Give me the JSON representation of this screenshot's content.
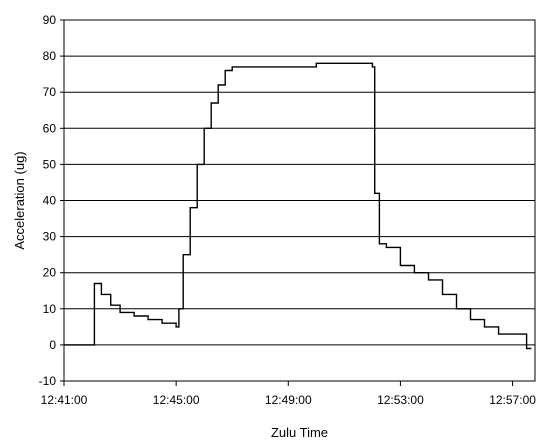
{
  "chart_data": {
    "type": "line",
    "title": "",
    "xlabel": "Zulu Time",
    "ylabel": "Acceleration (ug)",
    "xlim": [
      "12:41:00",
      "12:57:48"
    ],
    "ylim": [
      -10,
      90
    ],
    "yticks": [
      -10,
      0,
      10,
      20,
      30,
      40,
      50,
      60,
      70,
      80,
      90
    ],
    "xticks": [
      "12:41:00",
      "12:45:00",
      "12:49:00",
      "12:53:00",
      "12:57:00"
    ],
    "grid": "horizontal",
    "legend": "none",
    "line_color": "#000000",
    "series": [
      {
        "x": [
          "12:41:00",
          "12:41:40",
          "12:42:00",
          "12:42:05",
          "12:42:20",
          "12:42:40",
          "12:43:00",
          "12:43:30",
          "12:44:00",
          "12:44:30",
          "12:45:00",
          "12:45:06",
          "12:45:15",
          "12:45:30",
          "12:45:45",
          "12:46:00",
          "12:46:15",
          "12:46:30",
          "12:46:45",
          "12:47:00",
          "12:47:15",
          "12:48:00",
          "12:49:00",
          "12:50:00",
          "12:51:00",
          "12:51:45",
          "12:52:00",
          "12:52:05",
          "12:52:15",
          "12:52:30",
          "12:53:00",
          "12:53:30",
          "12:54:00",
          "12:54:30",
          "12:55:00",
          "12:55:30",
          "12:56:00",
          "12:56:30",
          "12:57:00",
          "12:57:10",
          "12:57:30",
          "12:57:40"
        ],
        "y": [
          0,
          0,
          0,
          17,
          14,
          11,
          9,
          8,
          7,
          6,
          5,
          10,
          25,
          38,
          50,
          60,
          67,
          72,
          76,
          77,
          77,
          77,
          77,
          78,
          78,
          78,
          77,
          42,
          28,
          27,
          22,
          20,
          18,
          14,
          10,
          7,
          5,
          3,
          3,
          3,
          -1,
          -1
        ]
      }
    ]
  }
}
